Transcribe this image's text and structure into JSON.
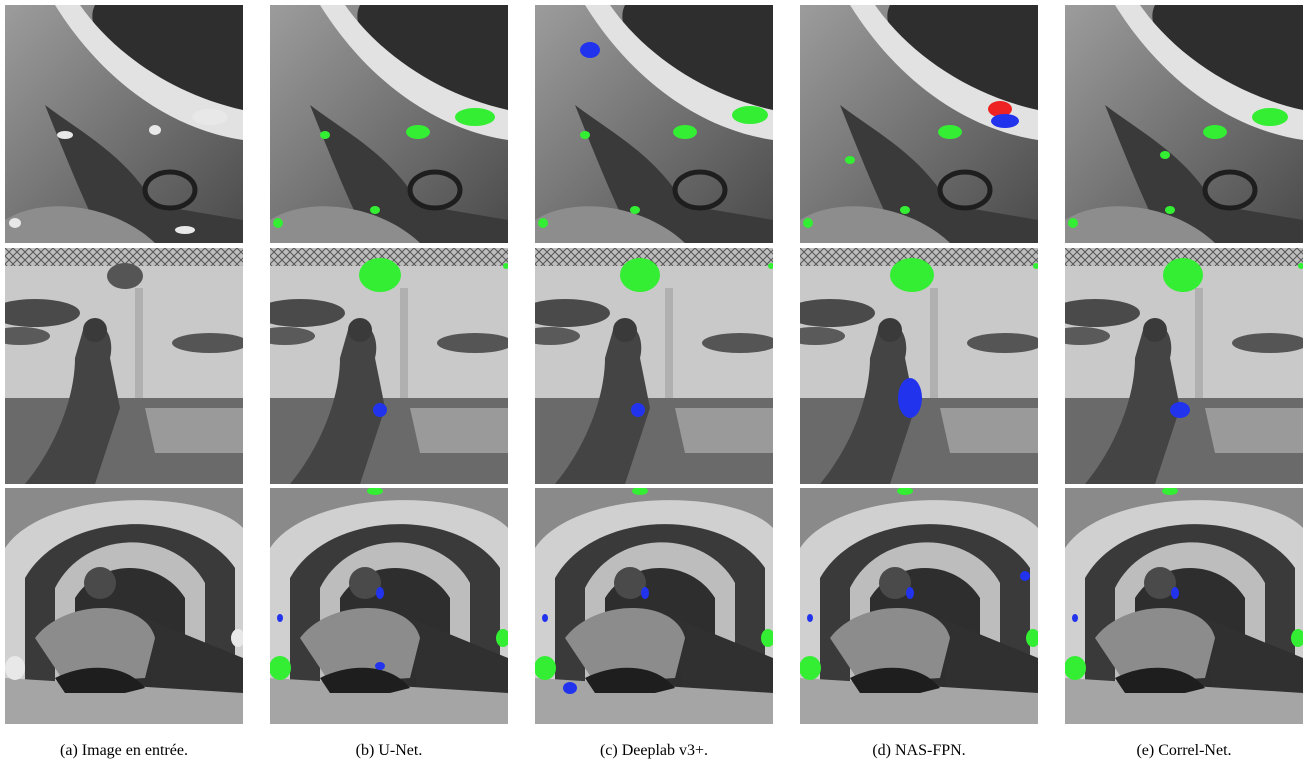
{
  "captions": [
    "(a) Image en entrée.",
    "(b) U-Net.",
    "(c) Deeplab v3+.",
    "(d) NAS-FPN.",
    "(e) Correl-Net."
  ]
}
